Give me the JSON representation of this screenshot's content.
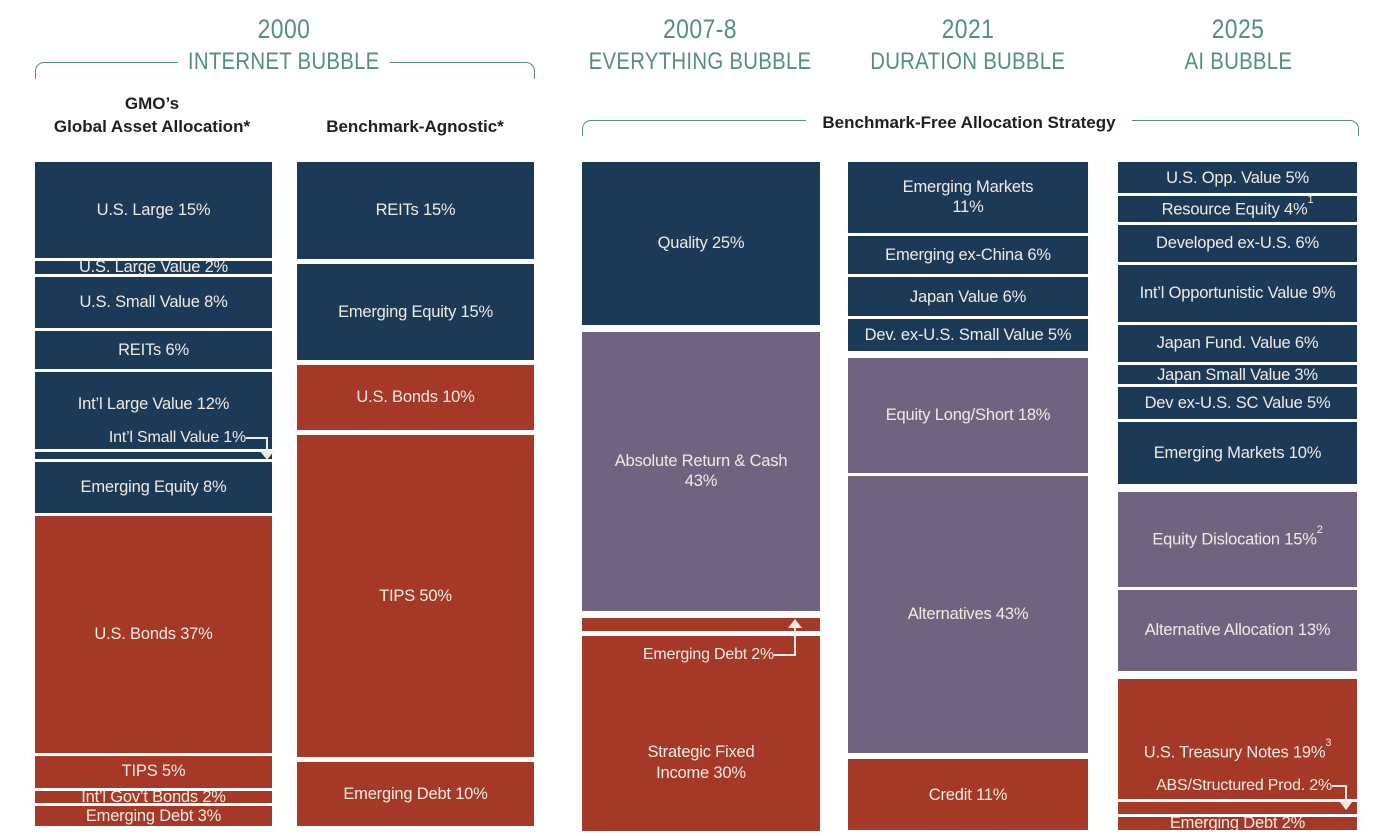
{
  "palette": {
    "equity": "#1B3A58",
    "alternatives": "#716380",
    "fixed_income": "#A63828",
    "heading_teal": "#53907F",
    "segment_text": "#F1EBE3",
    "title_text": "#1F1F1D",
    "background": "#FFFFFF"
  },
  "eras": [
    {
      "year": "2000",
      "bubble": "INTERNET BUBBLE"
    },
    {
      "year": "2007-8",
      "bubble": "EVERYTHING BUBBLE"
    },
    {
      "year": "2021",
      "bubble": "DURATION BUBBLE"
    },
    {
      "year": "2025",
      "bubble": "AI BUBBLE"
    }
  ],
  "strategies": {
    "gaa_line1": "GMO’s",
    "gaa_line2": "Global Asset Allocation*",
    "agnostic": "Benchmark-Agnostic*",
    "benchmark_free": "Benchmark-Free Allocation Strategy"
  },
  "chart_data": {
    "type": "bar",
    "stacked": true,
    "value_unit": "%",
    "group_legend": [
      "equity",
      "alternatives",
      "fixed_income"
    ],
    "columns": [
      {
        "id": "gaa-2000",
        "era": "2000",
        "strategy": "GMO’s Global Asset Allocation*",
        "segments": [
          {
            "name": "U.S. Large",
            "value": 15,
            "group": "equity"
          },
          {
            "name": "U.S. Large Value",
            "value": 2,
            "group": "equity"
          },
          {
            "name": "U.S. Small Value",
            "value": 8,
            "group": "equity"
          },
          {
            "name": "REITs",
            "value": 6,
            "group": "equity"
          },
          {
            "name": "Int’l Large Value",
            "value": 12,
            "group": "equity",
            "callout": {
              "text": "Int’l Small Value 1%",
              "dir": "down"
            }
          },
          {
            "name": "Int’l Small Value",
            "value": 1,
            "group": "equity",
            "hide_label": true
          },
          {
            "name": "Emerging Equity",
            "value": 8,
            "group": "equity"
          },
          {
            "name": "U.S. Bonds",
            "value": 37,
            "group": "fixed_income"
          },
          {
            "name": "TIPS",
            "value": 5,
            "group": "fixed_income"
          },
          {
            "name": "Int’l Gov’t Bonds",
            "value": 2,
            "group": "fixed_income"
          },
          {
            "name": "Emerging Debt",
            "value": 3,
            "group": "fixed_income"
          }
        ]
      },
      {
        "id": "benchmark-agnostic-2000",
        "era": "2000",
        "strategy": "Benchmark-Agnostic*",
        "segments": [
          {
            "name": "REITs",
            "value": 15,
            "group": "equity"
          },
          {
            "name": "Emerging Equity",
            "value": 15,
            "group": "equity"
          },
          {
            "name": "U.S. Bonds",
            "value": 10,
            "group": "fixed_income"
          },
          {
            "name": "TIPS",
            "value": 50,
            "group": "fixed_income"
          },
          {
            "name": "Emerging Debt",
            "value": 10,
            "group": "fixed_income"
          }
        ]
      },
      {
        "id": "benchmark-free-2007-8",
        "era": "2007-8",
        "strategy": "Benchmark-Free Allocation Strategy",
        "segments": [
          {
            "name": "Quality",
            "value": 25,
            "group": "equity"
          },
          {
            "name": "Absolute Return & Cash",
            "value": 43,
            "group": "alternatives",
            "break": true
          },
          {
            "name": "Emerging Debt",
            "value": 2,
            "group": "fixed_income",
            "hide_label": true
          },
          {
            "name": "Strategic Fixed\nIncome",
            "value": 30,
            "group": "fixed_income",
            "callout": {
              "text": "Emerging Debt 2%",
              "dir": "up"
            }
          }
        ]
      },
      {
        "id": "benchmark-free-2021",
        "era": "2021",
        "strategy": "Benchmark-Free Allocation Strategy",
        "segments": [
          {
            "name": "Emerging Markets",
            "value": 11,
            "group": "equity",
            "break": true
          },
          {
            "name": "Emerging ex-China",
            "value": 6,
            "group": "equity"
          },
          {
            "name": "Japan Value",
            "value": 6,
            "group": "equity"
          },
          {
            "name": "Dev. ex-U.S. Small Value",
            "value": 5,
            "group": "equity"
          },
          {
            "name": "Equity Long/Short",
            "value": 18,
            "group": "alternatives"
          },
          {
            "name": "Alternatives",
            "value": 43,
            "group": "alternatives"
          },
          {
            "name": "Credit",
            "value": 11,
            "group": "fixed_income"
          }
        ]
      },
      {
        "id": "benchmark-free-2025",
        "era": "2025",
        "strategy": "Benchmark-Free Allocation Strategy",
        "segments": [
          {
            "name": "U.S. Opp. Value",
            "value": 5,
            "group": "equity"
          },
          {
            "name": "Resource Equity",
            "value": 4,
            "group": "equity",
            "sup": "1"
          },
          {
            "name": "Developed ex-U.S.",
            "value": 6,
            "group": "equity"
          },
          {
            "name": "Int’l Opportunistic Value",
            "value": 9,
            "group": "equity"
          },
          {
            "name": "Japan Fund. Value",
            "value": 6,
            "group": "equity"
          },
          {
            "name": "Japan Small Value",
            "value": 3,
            "group": "equity"
          },
          {
            "name": "Dev ex-U.S. SC Value",
            "value": 5,
            "group": "equity"
          },
          {
            "name": "Emerging Markets",
            "value": 10,
            "group": "equity"
          },
          {
            "name": "Equity Dislocation",
            "value": 15,
            "group": "alternatives",
            "sup": "2"
          },
          {
            "name": "Alternative Allocation",
            "value": 13,
            "group": "alternatives"
          },
          {
            "name": "U.S. Treasury Notes",
            "value": 19,
            "group": "fixed_income",
            "sup": "3",
            "callout": {
              "text": "ABS/Structured Prod. 2%",
              "dir": "down"
            }
          },
          {
            "name": "ABS/Structured Prod.",
            "value": 2,
            "group": "fixed_income",
            "hide_label": true
          },
          {
            "name": "Emerging Debt",
            "value": 2,
            "group": "fixed_income"
          }
        ]
      }
    ]
  }
}
